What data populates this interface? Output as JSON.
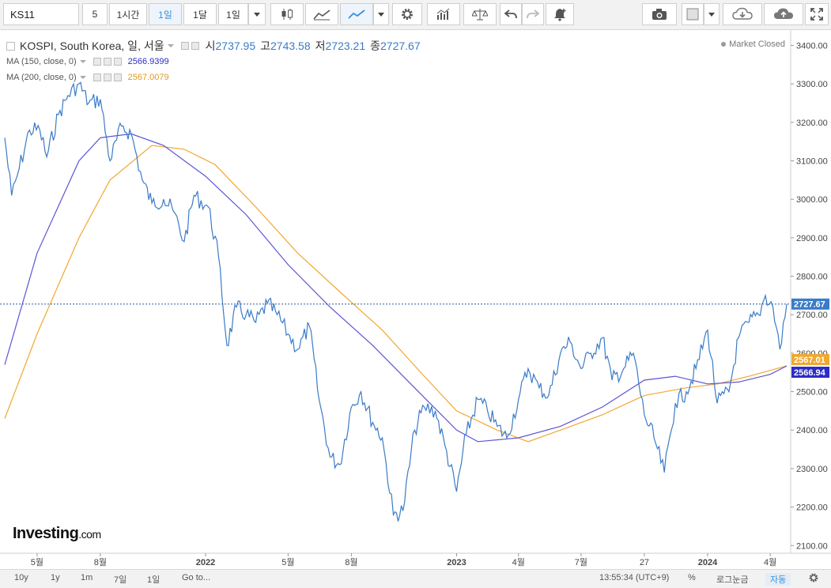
{
  "toolbar": {
    "symbol": "KS11",
    "interval_num": "5",
    "intervals": [
      "1시간",
      "1일",
      "1달",
      "1일"
    ],
    "colors": {
      "selected": "#3a8fd8"
    },
    "icons": [
      "candlestick-icon",
      "mountain-icon",
      "line-icon",
      "chevron-down-icon",
      "gear-icon",
      "indicators-icon",
      "balance-icon",
      "undo-icon",
      "redo-icon",
      "alert-icon",
      "camera-icon",
      "square-icon",
      "cloud-download-icon",
      "cloud-upload-icon",
      "fullscreen-icon"
    ]
  },
  "legend": {
    "name": "KOSPI, South Korea, 일, 서울",
    "open_label": "시",
    "open": "2737.95",
    "high_label": "고",
    "high": "2743.58",
    "low_label": "저",
    "low": "2723.21",
    "close_label": "종",
    "close": "2727.67",
    "ma150_label": "MA (150, close, 0)",
    "ma150_value": "2566.9399",
    "ma200_label": "MA (200, close, 0)",
    "ma200_value": "2567.0079",
    "status": "Market Closed"
  },
  "bottombar": {
    "ranges": [
      "10y",
      "1y",
      "1m",
      "7일",
      "1일"
    ],
    "goto": "Go to...",
    "time": "13:55:34 (UTC+9)",
    "percent": "%",
    "log": "로그눈금",
    "auto": "자동"
  },
  "chart_data": {
    "type": "line",
    "title": "KOSPI, South Korea, 일, 서울",
    "ylim": [
      2080,
      3440
    ],
    "y_ticks": [
      2100,
      2200,
      2300,
      2400,
      2500,
      2600,
      2700,
      2800,
      2900,
      3000,
      3100,
      3200,
      3300,
      3400
    ],
    "y_tick_labels": [
      "2100.00",
      "2200.00",
      "2300.00",
      "2400.00",
      "2500.00",
      "2600.00",
      "2700.00",
      "2800.00",
      "2900.00",
      "3000.00",
      "3100.00",
      "3200.00",
      "3300.00",
      "3400.00"
    ],
    "x_range": [
      "2021-03-15",
      "2024-04-25"
    ],
    "x_ticks": [
      {
        "date": "2021-05-01",
        "label": "5월"
      },
      {
        "date": "2021-08-01",
        "label": "8월"
      },
      {
        "date": "2022-01-01",
        "label": "2022"
      },
      {
        "date": "2022-05-01",
        "label": "5월"
      },
      {
        "date": "2022-08-01",
        "label": "8월"
      },
      {
        "date": "2023-01-01",
        "label": "2023"
      },
      {
        "date": "2023-04-01",
        "label": "4월"
      },
      {
        "date": "2023-07-01",
        "label": "7월"
      },
      {
        "date": "2023-10-01",
        "label": "27"
      },
      {
        "date": "2024-01-01",
        "label": "2024"
      },
      {
        "date": "2024-04-01",
        "label": "4월"
      }
    ],
    "grid": false,
    "last_price_label": "2727.67",
    "ma200_label": "2567.01",
    "ma150_label": "2566.94",
    "series": [
      {
        "name": "KOSPI",
        "color": "#3a7bc8",
        "points": [
          [
            "2021-03-15",
            3160
          ],
          [
            "2021-03-25",
            3010
          ],
          [
            "2021-04-05",
            3080
          ],
          [
            "2021-04-20",
            3180
          ],
          [
            "2021-05-05",
            3180
          ],
          [
            "2021-05-15",
            3110
          ],
          [
            "2021-06-01",
            3220
          ],
          [
            "2021-06-15",
            3270
          ],
          [
            "2021-07-01",
            3300
          ],
          [
            "2021-07-15",
            3250
          ],
          [
            "2021-08-01",
            3260
          ],
          [
            "2021-08-15",
            3100
          ],
          [
            "2021-09-01",
            3190
          ],
          [
            "2021-09-15",
            3170
          ],
          [
            "2021-10-01",
            3050
          ],
          [
            "2021-10-15",
            2990
          ],
          [
            "2021-11-01",
            3000
          ],
          [
            "2021-11-15",
            2970
          ],
          [
            "2021-12-01",
            2890
          ],
          [
            "2021-12-15",
            3010
          ],
          [
            "2022-01-05",
            2980
          ],
          [
            "2022-01-20",
            2850
          ],
          [
            "2022-02-01",
            2620
          ],
          [
            "2022-02-15",
            2720
          ],
          [
            "2022-03-01",
            2700
          ],
          [
            "2022-03-15",
            2680
          ],
          [
            "2022-04-01",
            2730
          ],
          [
            "2022-04-15",
            2700
          ],
          [
            "2022-05-01",
            2650
          ],
          [
            "2022-05-15",
            2610
          ],
          [
            "2022-06-01",
            2670
          ],
          [
            "2022-06-15",
            2480
          ],
          [
            "2022-07-01",
            2330
          ],
          [
            "2022-07-15",
            2310
          ],
          [
            "2022-08-01",
            2460
          ],
          [
            "2022-08-15",
            2500
          ],
          [
            "2022-09-01",
            2420
          ],
          [
            "2022-09-15",
            2380
          ],
          [
            "2022-10-01",
            2180
          ],
          [
            "2022-10-15",
            2190
          ],
          [
            "2022-11-01",
            2400
          ],
          [
            "2022-11-15",
            2460
          ],
          [
            "2022-12-01",
            2450
          ],
          [
            "2022-12-15",
            2360
          ],
          [
            "2023-01-01",
            2240
          ],
          [
            "2023-01-15",
            2390
          ],
          [
            "2023-02-01",
            2480
          ],
          [
            "2023-02-15",
            2450
          ],
          [
            "2023-03-01",
            2410
          ],
          [
            "2023-03-15",
            2380
          ],
          [
            "2023-04-01",
            2480
          ],
          [
            "2023-04-15",
            2560
          ],
          [
            "2023-05-01",
            2510
          ],
          [
            "2023-05-15",
            2490
          ],
          [
            "2023-06-01",
            2600
          ],
          [
            "2023-06-15",
            2630
          ],
          [
            "2023-07-01",
            2560
          ],
          [
            "2023-07-15",
            2600
          ],
          [
            "2023-08-01",
            2640
          ],
          [
            "2023-08-15",
            2530
          ],
          [
            "2023-09-01",
            2560
          ],
          [
            "2023-09-15",
            2600
          ],
          [
            "2023-10-01",
            2440
          ],
          [
            "2023-10-15",
            2380
          ],
          [
            "2023-10-30",
            2290
          ],
          [
            "2023-11-15",
            2470
          ],
          [
            "2023-12-01",
            2500
          ],
          [
            "2023-12-15",
            2560
          ],
          [
            "2024-01-01",
            2660
          ],
          [
            "2024-01-15",
            2470
          ],
          [
            "2024-02-01",
            2500
          ],
          [
            "2024-02-15",
            2640
          ],
          [
            "2024-03-01",
            2680
          ],
          [
            "2024-03-15",
            2700
          ],
          [
            "2024-03-25",
            2750
          ],
          [
            "2024-04-05",
            2720
          ],
          [
            "2024-04-15",
            2610
          ],
          [
            "2024-04-25",
            2727.67
          ]
        ]
      },
      {
        "name": "MA (150, close, 0)",
        "color": "#5b55d6",
        "points": [
          [
            "2021-03-15",
            2570
          ],
          [
            "2021-05-01",
            2860
          ],
          [
            "2021-07-01",
            3100
          ],
          [
            "2021-08-01",
            3160
          ],
          [
            "2021-09-15",
            3170
          ],
          [
            "2021-11-01",
            3140
          ],
          [
            "2022-01-01",
            3060
          ],
          [
            "2022-03-01",
            2960
          ],
          [
            "2022-05-01",
            2830
          ],
          [
            "2022-07-01",
            2720
          ],
          [
            "2022-09-01",
            2620
          ],
          [
            "2022-11-01",
            2510
          ],
          [
            "2023-01-01",
            2400
          ],
          [
            "2023-02-01",
            2370
          ],
          [
            "2023-04-01",
            2380
          ],
          [
            "2023-06-01",
            2410
          ],
          [
            "2023-08-01",
            2460
          ],
          [
            "2023-10-01",
            2530
          ],
          [
            "2023-11-15",
            2540
          ],
          [
            "2024-01-01",
            2520
          ],
          [
            "2024-02-15",
            2525
          ],
          [
            "2024-04-01",
            2545
          ],
          [
            "2024-04-25",
            2566.94
          ]
        ]
      },
      {
        "name": "MA (200, close, 0)",
        "color": "#f0a830",
        "points": [
          [
            "2021-03-15",
            2430
          ],
          [
            "2021-05-01",
            2650
          ],
          [
            "2021-07-01",
            2900
          ],
          [
            "2021-08-15",
            3050
          ],
          [
            "2021-10-15",
            3140
          ],
          [
            "2021-12-01",
            3130
          ],
          [
            "2022-01-15",
            3090
          ],
          [
            "2022-03-15",
            2980
          ],
          [
            "2022-05-15",
            2860
          ],
          [
            "2022-07-15",
            2760
          ],
          [
            "2022-09-15",
            2660
          ],
          [
            "2022-11-15",
            2540
          ],
          [
            "2023-01-01",
            2450
          ],
          [
            "2023-03-01",
            2400
          ],
          [
            "2023-04-15",
            2370
          ],
          [
            "2023-06-01",
            2400
          ],
          [
            "2023-08-01",
            2440
          ],
          [
            "2023-10-01",
            2490
          ],
          [
            "2023-12-01",
            2510
          ],
          [
            "2024-01-15",
            2520
          ],
          [
            "2024-03-01",
            2540
          ],
          [
            "2024-04-25",
            2567.01
          ]
        ]
      }
    ]
  }
}
